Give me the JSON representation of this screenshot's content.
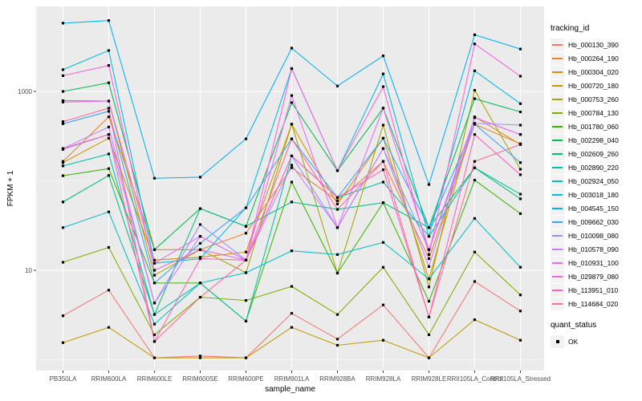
{
  "figure": {
    "background": "#FFFFFF",
    "panel_background": "#EBEBEB",
    "grid_color": "#FFFFFF",
    "tick_label_color": "#4D4D4D",
    "point_color": "#000000",
    "legend_key_background": "#F2F2F2"
  },
  "legend": {
    "tracking_title": "tracking_id",
    "quant_title": "quant_status",
    "quant_items": [
      {
        "label": "OK",
        "marker": "filled-square",
        "color": "#000000"
      }
    ]
  },
  "chart_data": {
    "type": "line",
    "title": "",
    "xlabel": "sample_name",
    "ylabel": "FPKM + 1",
    "y_scale": "log10",
    "y_ticks": [
      {
        "label": "1000",
        "value": 1000
      },
      {
        "label": "10",
        "value": 10
      }
    ],
    "y_minor_gridlines": [
      100,
      1
    ],
    "ylim": [
      0.76,
      8900
    ],
    "grid": true,
    "legend_position": "right",
    "marker": "small-black-square",
    "categories": [
      "PB350LA",
      "RRIM600LA",
      "RRIM600LE",
      "RRIM600SE",
      "RRIM600PE",
      "RRIM901LA",
      "RRIM928BA",
      "RRIM928LA",
      "RRIM928LE",
      "RRII105LA_Control",
      "RRII105LA_Stressed"
    ],
    "series": [
      {
        "name": "Hb_000130_390",
        "color": "#F8766D",
        "values": [
          3.1,
          6.0,
          1.05,
          1.1,
          1.05,
          3.3,
          1.7,
          4.1,
          1.05,
          7.5,
          3.5
        ]
      },
      {
        "name": "Hb_000264_190",
        "color": "#EA8331",
        "values": [
          165,
          520,
          17,
          17,
          26,
          140,
          60,
          165,
          13.5,
          430,
          260
        ]
      },
      {
        "name": "Hb_000304_020",
        "color": "#D89000",
        "values": [
          160,
          300,
          13,
          14,
          16,
          430,
          55,
          300,
          8,
          520,
          255
        ]
      },
      {
        "name": "Hb_000720_180",
        "color": "#C09B00",
        "values": [
          1.55,
          2.3,
          1.05,
          1.05,
          1.05,
          2.3,
          1.45,
          1.65,
          1.05,
          2.8,
          1.65
        ]
      },
      {
        "name": "Hb_000753_260",
        "color": "#A3A500",
        "values": [
          790,
          780,
          8.8,
          17,
          9.4,
          430,
          9.3,
          420,
          6.5,
          1030,
          135
        ]
      },
      {
        "name": "Hb_000784_130",
        "color": "#7CAE00",
        "values": [
          12.3,
          18,
          1.9,
          5.0,
          4.6,
          6.6,
          3.2,
          10.8,
          1.9,
          16,
          5.3
        ]
      },
      {
        "name": "Hb_001780_060",
        "color": "#39B600",
        "values": [
          114,
          137,
          7.2,
          7.2,
          2.7,
          97,
          9.3,
          57,
          4.5,
          102,
          43
        ]
      },
      {
        "name": "Hb_002298_040",
        "color": "#00BB4E",
        "values": [
          1000,
          1250,
          17,
          49,
          31,
          750,
          130,
          650,
          30,
          830,
          590
        ]
      },
      {
        "name": "Hb_002609_260",
        "color": "#00BF7D",
        "values": [
          58,
          115,
          3.2,
          49,
          31,
          58,
          48,
          57,
          30,
          140,
          63
        ]
      },
      {
        "name": "Hb_002890_220",
        "color": "#00C1A3",
        "values": [
          147,
          200,
          3.2,
          7.2,
          2.7,
          190,
          65,
          97,
          24,
          140,
          71
        ]
      },
      {
        "name": "Hb_002924_050",
        "color": "#00BFC4",
        "values": [
          30,
          45,
          2.5,
          7.2,
          9.4,
          16.5,
          15,
          20.5,
          8,
          38,
          10.8
        ]
      },
      {
        "name": "Hb_003018_180",
        "color": "#00BAE0",
        "values": [
          1750,
          2870,
          12,
          13.5,
          50,
          1800,
          130,
          1570,
          24,
          1700,
          730
        ]
      },
      {
        "name": "Hb_004545_150",
        "color": "#00B0F6",
        "values": [
          5800,
          6200,
          107,
          110,
          295,
          3050,
          1150,
          2500,
          91,
          4300,
          2980
        ]
      },
      {
        "name": "Hb_009662_030",
        "color": "#35A2FF",
        "values": [
          435,
          600,
          7.2,
          20,
          50,
          295,
          65,
          300,
          30,
          430,
          160
        ]
      },
      {
        "name": "Hb_010098_080",
        "color": "#9590FF",
        "values": [
          225,
          330,
          4.3,
          32.5,
          13,
          190,
          30,
          230,
          17,
          440,
          420
        ]
      },
      {
        "name": "Hb_010578_090",
        "color": "#C77CFF",
        "values": [
          230,
          400,
          4.3,
          24,
          13,
          150,
          30,
          230,
          11,
          510,
          330
        ]
      },
      {
        "name": "Hb_010931_100",
        "color": "#E76BF3",
        "values": [
          760,
          780,
          12,
          24,
          13,
          900,
          30,
          650,
          17,
          510,
          330
        ]
      },
      {
        "name": "Hb_029879_080",
        "color": "#FA62DB",
        "values": [
          1500,
          1950,
          10,
          17,
          13,
          1800,
          130,
          1130,
          15,
          3400,
          1480
        ]
      },
      {
        "name": "Hb_113951_010",
        "color": "#FF62BC",
        "values": [
          230,
          330,
          1.6,
          13.5,
          13,
          190,
          65,
          133,
          3.0,
          330,
          117
        ]
      },
      {
        "name": "Hb_114684_020",
        "color": "#FF6A98",
        "values": [
          460,
          650,
          1.6,
          5.0,
          13,
          295,
          48,
          165,
          3.0,
          165,
          255
        ]
      }
    ]
  }
}
